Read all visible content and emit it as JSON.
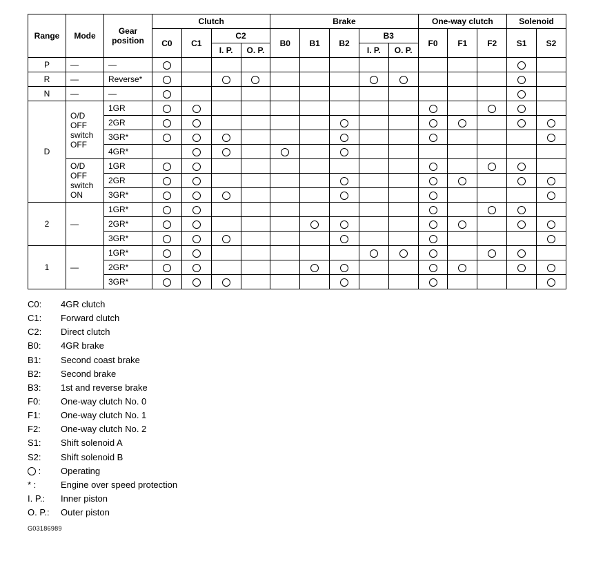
{
  "headers": {
    "range": "Range",
    "mode": "Mode",
    "gear": "Gear position",
    "clutch": "Clutch",
    "brake": "Brake",
    "owc": "One-way clutch",
    "solenoid": "Solenoid",
    "c0": "C0",
    "c1": "C1",
    "c2": "C2",
    "ip": "I. P.",
    "op": "O. P.",
    "b0": "B0",
    "b1": "B1",
    "b2": "B2",
    "b3": "B3",
    "f0": "F0",
    "f1": "F1",
    "f2": "F2",
    "s1": "S1",
    "s2": "S2"
  },
  "dash": "—",
  "ranges": {
    "p": "P",
    "r": "R",
    "n": "N",
    "d": "D",
    "two": "2",
    "one": "1"
  },
  "modes": {
    "od_off_off": "O/D OFF switch OFF",
    "od_off_on": "O/D OFF switch ON"
  },
  "gears": {
    "reverse": "Reverse*",
    "g1": "1GR",
    "g2": "2GR",
    "g3s": "3GR*",
    "g4s": "4GR*",
    "g1s": "1GR*",
    "g2s": "2GR*"
  },
  "rows": [
    {
      "c0": 1,
      "c1": 0,
      "ip": 0,
      "op": 0,
      "b0": 0,
      "b1": 0,
      "b2": 0,
      "b3ip": 0,
      "b3op": 0,
      "f0": 0,
      "f1": 0,
      "f2": 0,
      "s1": 1,
      "s2": 0
    },
    {
      "c0": 1,
      "c1": 0,
      "ip": 1,
      "op": 1,
      "b0": 0,
      "b1": 0,
      "b2": 0,
      "b3ip": 1,
      "b3op": 1,
      "f0": 0,
      "f1": 0,
      "f2": 0,
      "s1": 1,
      "s2": 0
    },
    {
      "c0": 1,
      "c1": 0,
      "ip": 0,
      "op": 0,
      "b0": 0,
      "b1": 0,
      "b2": 0,
      "b3ip": 0,
      "b3op": 0,
      "f0": 0,
      "f1": 0,
      "f2": 0,
      "s1": 1,
      "s2": 0
    },
    {
      "c0": 1,
      "c1": 1,
      "ip": 0,
      "op": 0,
      "b0": 0,
      "b1": 0,
      "b2": 0,
      "b3ip": 0,
      "b3op": 0,
      "f0": 1,
      "f1": 0,
      "f2": 1,
      "s1": 1,
      "s2": 0
    },
    {
      "c0": 1,
      "c1": 1,
      "ip": 0,
      "op": 0,
      "b0": 0,
      "b1": 0,
      "b2": 1,
      "b3ip": 0,
      "b3op": 0,
      "f0": 1,
      "f1": 1,
      "f2": 0,
      "s1": 1,
      "s2": 1
    },
    {
      "c0": 1,
      "c1": 1,
      "ip": 1,
      "op": 0,
      "b0": 0,
      "b1": 0,
      "b2": 1,
      "b3ip": 0,
      "b3op": 0,
      "f0": 1,
      "f1": 0,
      "f2": 0,
      "s1": 0,
      "s2": 1
    },
    {
      "c0": 0,
      "c1": 1,
      "ip": 1,
      "op": 0,
      "b0": 1,
      "b1": 0,
      "b2": 1,
      "b3ip": 0,
      "b3op": 0,
      "f0": 0,
      "f1": 0,
      "f2": 0,
      "s1": 0,
      "s2": 0
    },
    {
      "c0": 1,
      "c1": 1,
      "ip": 0,
      "op": 0,
      "b0": 0,
      "b1": 0,
      "b2": 0,
      "b3ip": 0,
      "b3op": 0,
      "f0": 1,
      "f1": 0,
      "f2": 1,
      "s1": 1,
      "s2": 0
    },
    {
      "c0": 1,
      "c1": 1,
      "ip": 0,
      "op": 0,
      "b0": 0,
      "b1": 0,
      "b2": 1,
      "b3ip": 0,
      "b3op": 0,
      "f0": 1,
      "f1": 1,
      "f2": 0,
      "s1": 1,
      "s2": 1
    },
    {
      "c0": 1,
      "c1": 1,
      "ip": 1,
      "op": 0,
      "b0": 0,
      "b1": 0,
      "b2": 1,
      "b3ip": 0,
      "b3op": 0,
      "f0": 1,
      "f1": 0,
      "f2": 0,
      "s1": 0,
      "s2": 1
    },
    {
      "c0": 1,
      "c1": 1,
      "ip": 0,
      "op": 0,
      "b0": 0,
      "b1": 0,
      "b2": 0,
      "b3ip": 0,
      "b3op": 0,
      "f0": 1,
      "f1": 0,
      "f2": 1,
      "s1": 1,
      "s2": 0
    },
    {
      "c0": 1,
      "c1": 1,
      "ip": 0,
      "op": 0,
      "b0": 0,
      "b1": 1,
      "b2": 1,
      "b3ip": 0,
      "b3op": 0,
      "f0": 1,
      "f1": 1,
      "f2": 0,
      "s1": 1,
      "s2": 1
    },
    {
      "c0": 1,
      "c1": 1,
      "ip": 1,
      "op": 0,
      "b0": 0,
      "b1": 0,
      "b2": 1,
      "b3ip": 0,
      "b3op": 0,
      "f0": 1,
      "f1": 0,
      "f2": 0,
      "s1": 0,
      "s2": 1
    },
    {
      "c0": 1,
      "c1": 1,
      "ip": 0,
      "op": 0,
      "b0": 0,
      "b1": 0,
      "b2": 0,
      "b3ip": 1,
      "b3op": 1,
      "f0": 1,
      "f1": 0,
      "f2": 1,
      "s1": 1,
      "s2": 0
    },
    {
      "c0": 1,
      "c1": 1,
      "ip": 0,
      "op": 0,
      "b0": 0,
      "b1": 1,
      "b2": 1,
      "b3ip": 0,
      "b3op": 0,
      "f0": 1,
      "f1": 1,
      "f2": 0,
      "s1": 1,
      "s2": 1
    },
    {
      "c0": 1,
      "c1": 1,
      "ip": 1,
      "op": 0,
      "b0": 0,
      "b1": 0,
      "b2": 1,
      "b3ip": 0,
      "b3op": 0,
      "f0": 1,
      "f1": 0,
      "f2": 0,
      "s1": 0,
      "s2": 1
    }
  ],
  "legend": [
    {
      "k": "C0:",
      "v": "4GR clutch"
    },
    {
      "k": "C1:",
      "v": "Forward clutch"
    },
    {
      "k": "C2:",
      "v": "Direct clutch"
    },
    {
      "k": "B0:",
      "v": "4GR brake"
    },
    {
      "k": "B1:",
      "v": "Second coast brake"
    },
    {
      "k": "B2:",
      "v": "Second brake"
    },
    {
      "k": "B3:",
      "v": "1st and reverse brake"
    },
    {
      "k": "F0:",
      "v": "One-way clutch No. 0"
    },
    {
      "k": "F1:",
      "v": "One-way clutch No. 1"
    },
    {
      "k": "F2:",
      "v": "One-way clutch No. 2"
    },
    {
      "k": "S1:",
      "v": "Shift solenoid A"
    },
    {
      "k": "S2:",
      "v": "Shift solenoid B"
    },
    {
      "k": "◯ :",
      "v": "Operating"
    },
    {
      "k": "*  :",
      "v": "Engine over speed protection"
    },
    {
      "k": "I. P.:",
      "v": "Inner piston"
    },
    {
      "k": "O. P.:",
      "v": "Outer piston"
    }
  ],
  "docid": "G03186989"
}
